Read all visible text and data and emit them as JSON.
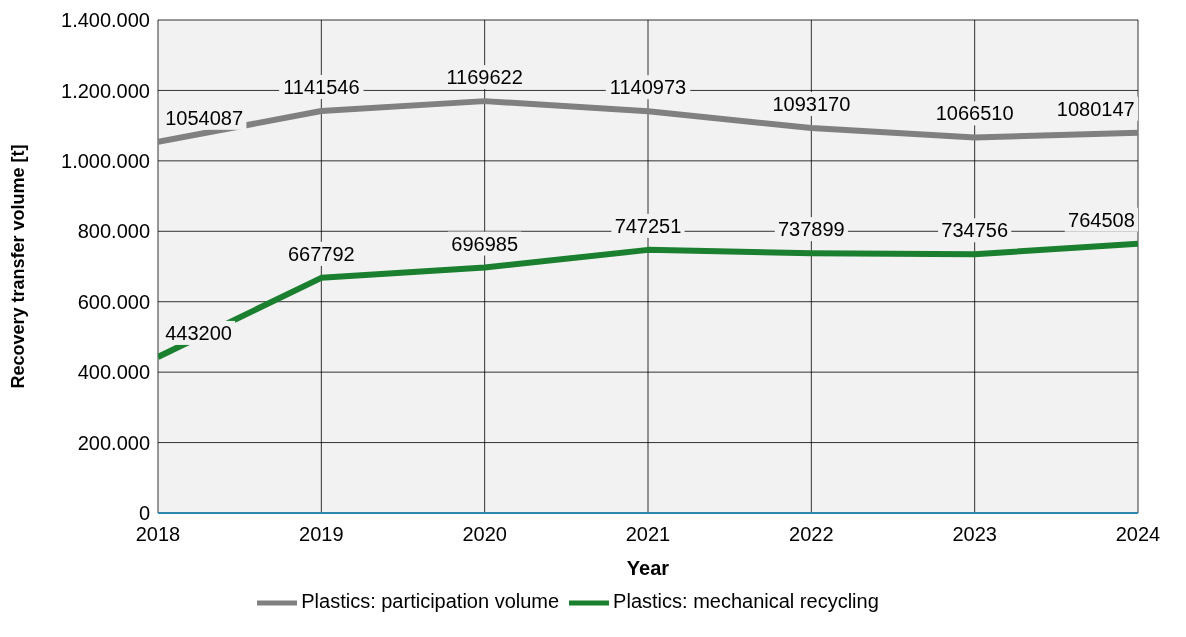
{
  "chart_data": {
    "type": "line",
    "xlabel": "Year",
    "ylabel": "Recovery transfer volume [t]",
    "categories": [
      "2018",
      "2019",
      "2020",
      "2021",
      "2022",
      "2023",
      "2024"
    ],
    "series": [
      {
        "name": "Plastics: participation volume",
        "color": "#808080",
        "values": [
          1054087,
          1141546,
          1169622,
          1140973,
          1093170,
          1066510,
          1080147
        ]
      },
      {
        "name": "Plastics: mechanical recycling",
        "color": "#1a7f2e",
        "values": [
          443200,
          667792,
          696985,
          747251,
          737899,
          734756,
          764508
        ]
      }
    ],
    "ylim": [
      0,
      1400000
    ],
    "yticks": [
      {
        "value": 0,
        "label": "0"
      },
      {
        "value": 200000,
        "label": "200.000"
      },
      {
        "value": 400000,
        "label": "400.000"
      },
      {
        "value": 600000,
        "label": "600.000"
      },
      {
        "value": 800000,
        "label": "800.000"
      },
      {
        "value": 1000000,
        "label": "1.000.000"
      },
      {
        "value": 1200000,
        "label": "1.200.000"
      },
      {
        "value": 1400000,
        "label": "1.400.000"
      }
    ],
    "grid": true,
    "legend": "bottom",
    "marker": "none",
    "line_style": "solid",
    "data_labels": true
  }
}
